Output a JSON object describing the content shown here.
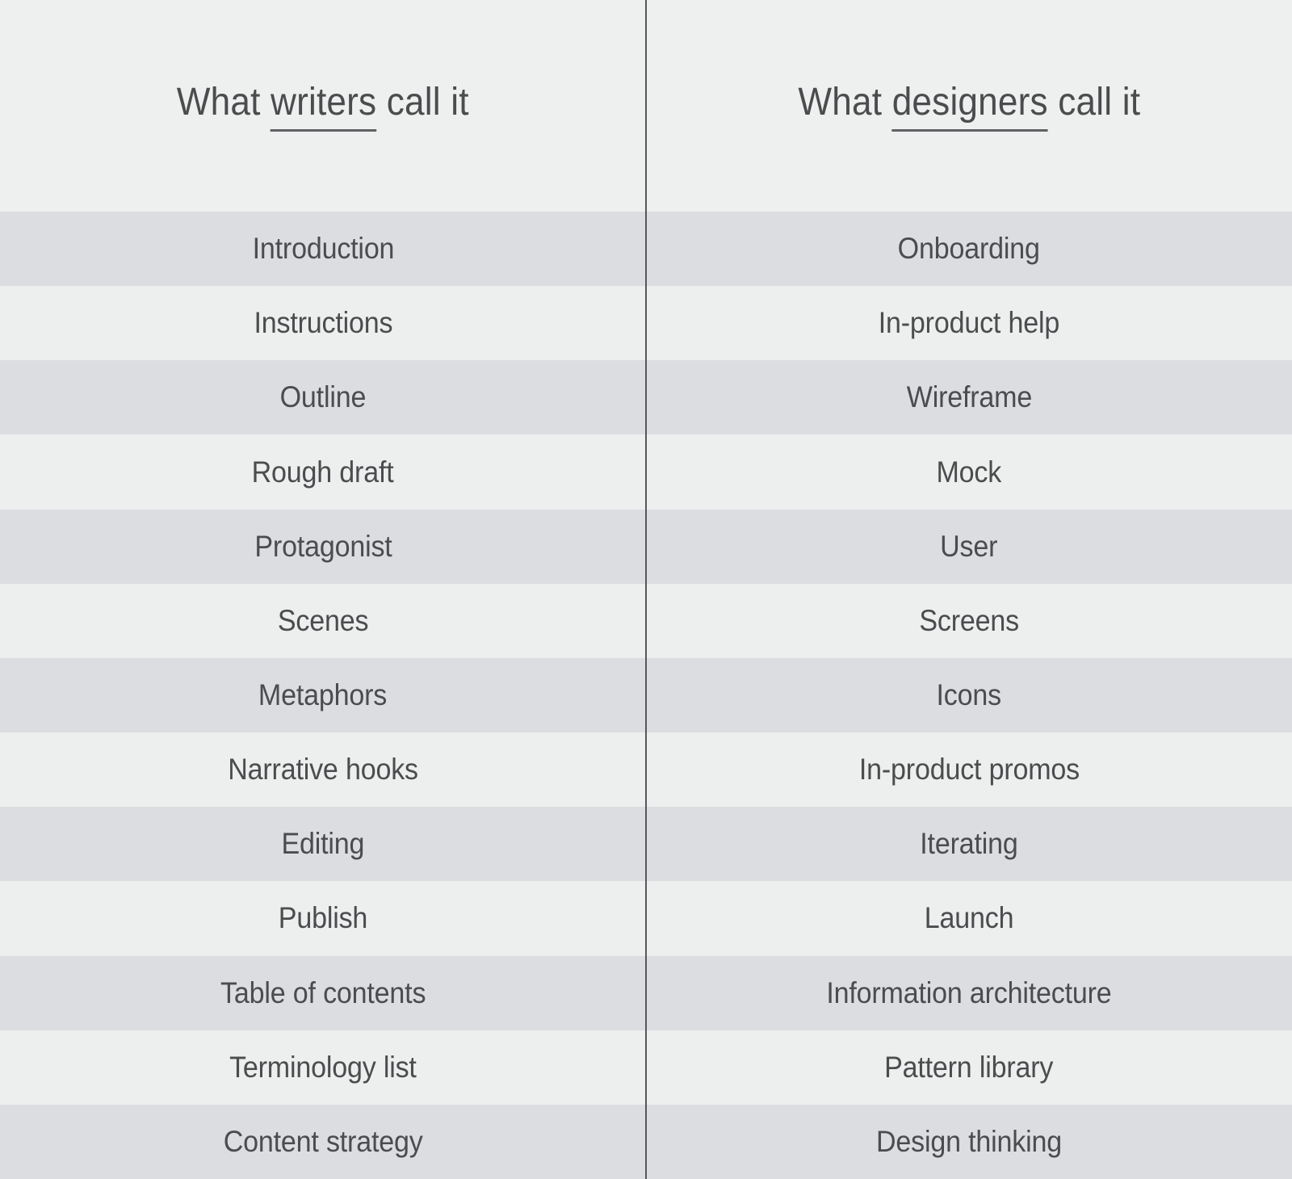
{
  "header": {
    "left": {
      "pre": "What ",
      "underlined_word": "writers",
      "post": " call it"
    },
    "right": {
      "pre": "What ",
      "underlined_word": "designers",
      "post": " call it"
    }
  },
  "chart_data": {
    "type": "table",
    "title": "What writers call it vs What designers call it",
    "columns": [
      "What writers call it",
      "What designers call it"
    ],
    "rows": [
      [
        "Introduction",
        "Onboarding"
      ],
      [
        "Instructions",
        "In-product help"
      ],
      [
        "Outline",
        "Wireframe"
      ],
      [
        "Rough draft",
        "Mock"
      ],
      [
        "Protagonist",
        "User"
      ],
      [
        "Scenes",
        "Screens"
      ],
      [
        "Metaphors",
        "Icons"
      ],
      [
        "Narrative hooks",
        "In-product promos"
      ],
      [
        "Editing",
        "Iterating"
      ],
      [
        "Publish",
        "Launch"
      ],
      [
        "Table of contents",
        "Information architecture"
      ],
      [
        "Terminology list",
        "Pattern library"
      ],
      [
        "Content strategy",
        "Design thinking"
      ]
    ],
    "layout_hints": {
      "striped_rows": true,
      "first_row_shade": "dark",
      "column_divider": "vertical line at horizontal center, full height",
      "underline": "only the words 'writers' and 'designers' are underlined in headers"
    }
  },
  "colors": {
    "bg-header": "#eeefef",
    "row-light": "#edeeee",
    "row-dark": "#dcdde0",
    "text": "#4b4c4e",
    "divider": "#55575b",
    "underline": "#5f6164"
  }
}
